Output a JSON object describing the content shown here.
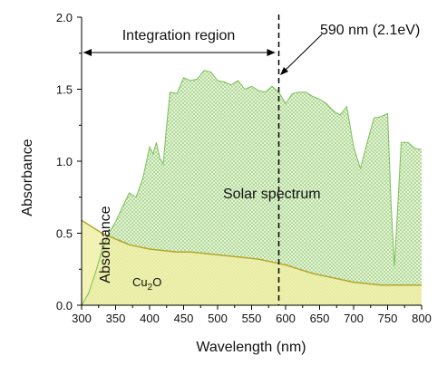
{
  "chart_data": {
    "type": "area",
    "xlabel": "Wavelength (nm)",
    "ylabel": "Absorbance",
    "xlim": [
      300,
      800
    ],
    "ylim": [
      0,
      2.0
    ],
    "xticks": [
      "300",
      "350",
      "400",
      "450",
      "500",
      "550",
      "600",
      "650",
      "700",
      "750",
      "800"
    ],
    "yticks": [
      "0.0",
      "0.5",
      "1.0",
      "1.5",
      "2.0"
    ],
    "grid": false,
    "annotations": {
      "integration_region": "Integration region",
      "cutoff": "590 nm (2.1eV)",
      "solar_spectrum": "Solar spectrum",
      "absorbance_inside": "Absorbance",
      "cu2o_main": "Cu",
      "cu2o_sub": "2",
      "cu2o_end": "O"
    },
    "cutoff_x": 590,
    "integration_range": [
      300,
      590
    ],
    "colors": {
      "solar_fill": "#e6f3d6",
      "solar_line": "#7cbf58",
      "cu2o_fill": "#eef0a6",
      "cu2o_line": "#b6a52b"
    },
    "series": [
      {
        "name": "Solar spectrum",
        "x": [
          300,
          310,
          320,
          330,
          340,
          350,
          360,
          370,
          380,
          390,
          400,
          405,
          410,
          415,
          420,
          425,
          430,
          440,
          450,
          460,
          470,
          480,
          490,
          500,
          510,
          520,
          530,
          540,
          550,
          560,
          570,
          580,
          590,
          600,
          610,
          620,
          630,
          640,
          650,
          660,
          670,
          680,
          690,
          700,
          710,
          720,
          730,
          740,
          750,
          755,
          760,
          765,
          770,
          780,
          790,
          800
        ],
        "y": [
          0.0,
          0.08,
          0.22,
          0.38,
          0.5,
          0.58,
          0.68,
          0.78,
          0.75,
          0.88,
          1.1,
          1.05,
          1.13,
          1.02,
          0.98,
          1.25,
          1.48,
          1.47,
          1.58,
          1.56,
          1.57,
          1.63,
          1.62,
          1.56,
          1.55,
          1.53,
          1.56,
          1.5,
          1.52,
          1.49,
          1.48,
          1.52,
          1.48,
          1.4,
          1.47,
          1.48,
          1.48,
          1.45,
          1.43,
          1.4,
          1.35,
          1.32,
          1.38,
          1.1,
          0.95,
          1.13,
          1.3,
          1.31,
          1.33,
          0.7,
          0.27,
          0.7,
          1.13,
          1.13,
          1.09,
          1.08
        ]
      },
      {
        "name": "Cu2O",
        "x": [
          300,
          310,
          320,
          330,
          340,
          350,
          360,
          370,
          380,
          390,
          400,
          420,
          440,
          460,
          480,
          500,
          520,
          540,
          560,
          580,
          600,
          620,
          640,
          660,
          680,
          700,
          720,
          740,
          760,
          780,
          800
        ],
        "y": [
          0.59,
          0.56,
          0.53,
          0.5,
          0.48,
          0.46,
          0.44,
          0.42,
          0.41,
          0.4,
          0.39,
          0.38,
          0.37,
          0.37,
          0.36,
          0.35,
          0.34,
          0.33,
          0.32,
          0.3,
          0.28,
          0.25,
          0.22,
          0.2,
          0.18,
          0.16,
          0.15,
          0.14,
          0.14,
          0.14,
          0.14
        ]
      }
    ]
  }
}
